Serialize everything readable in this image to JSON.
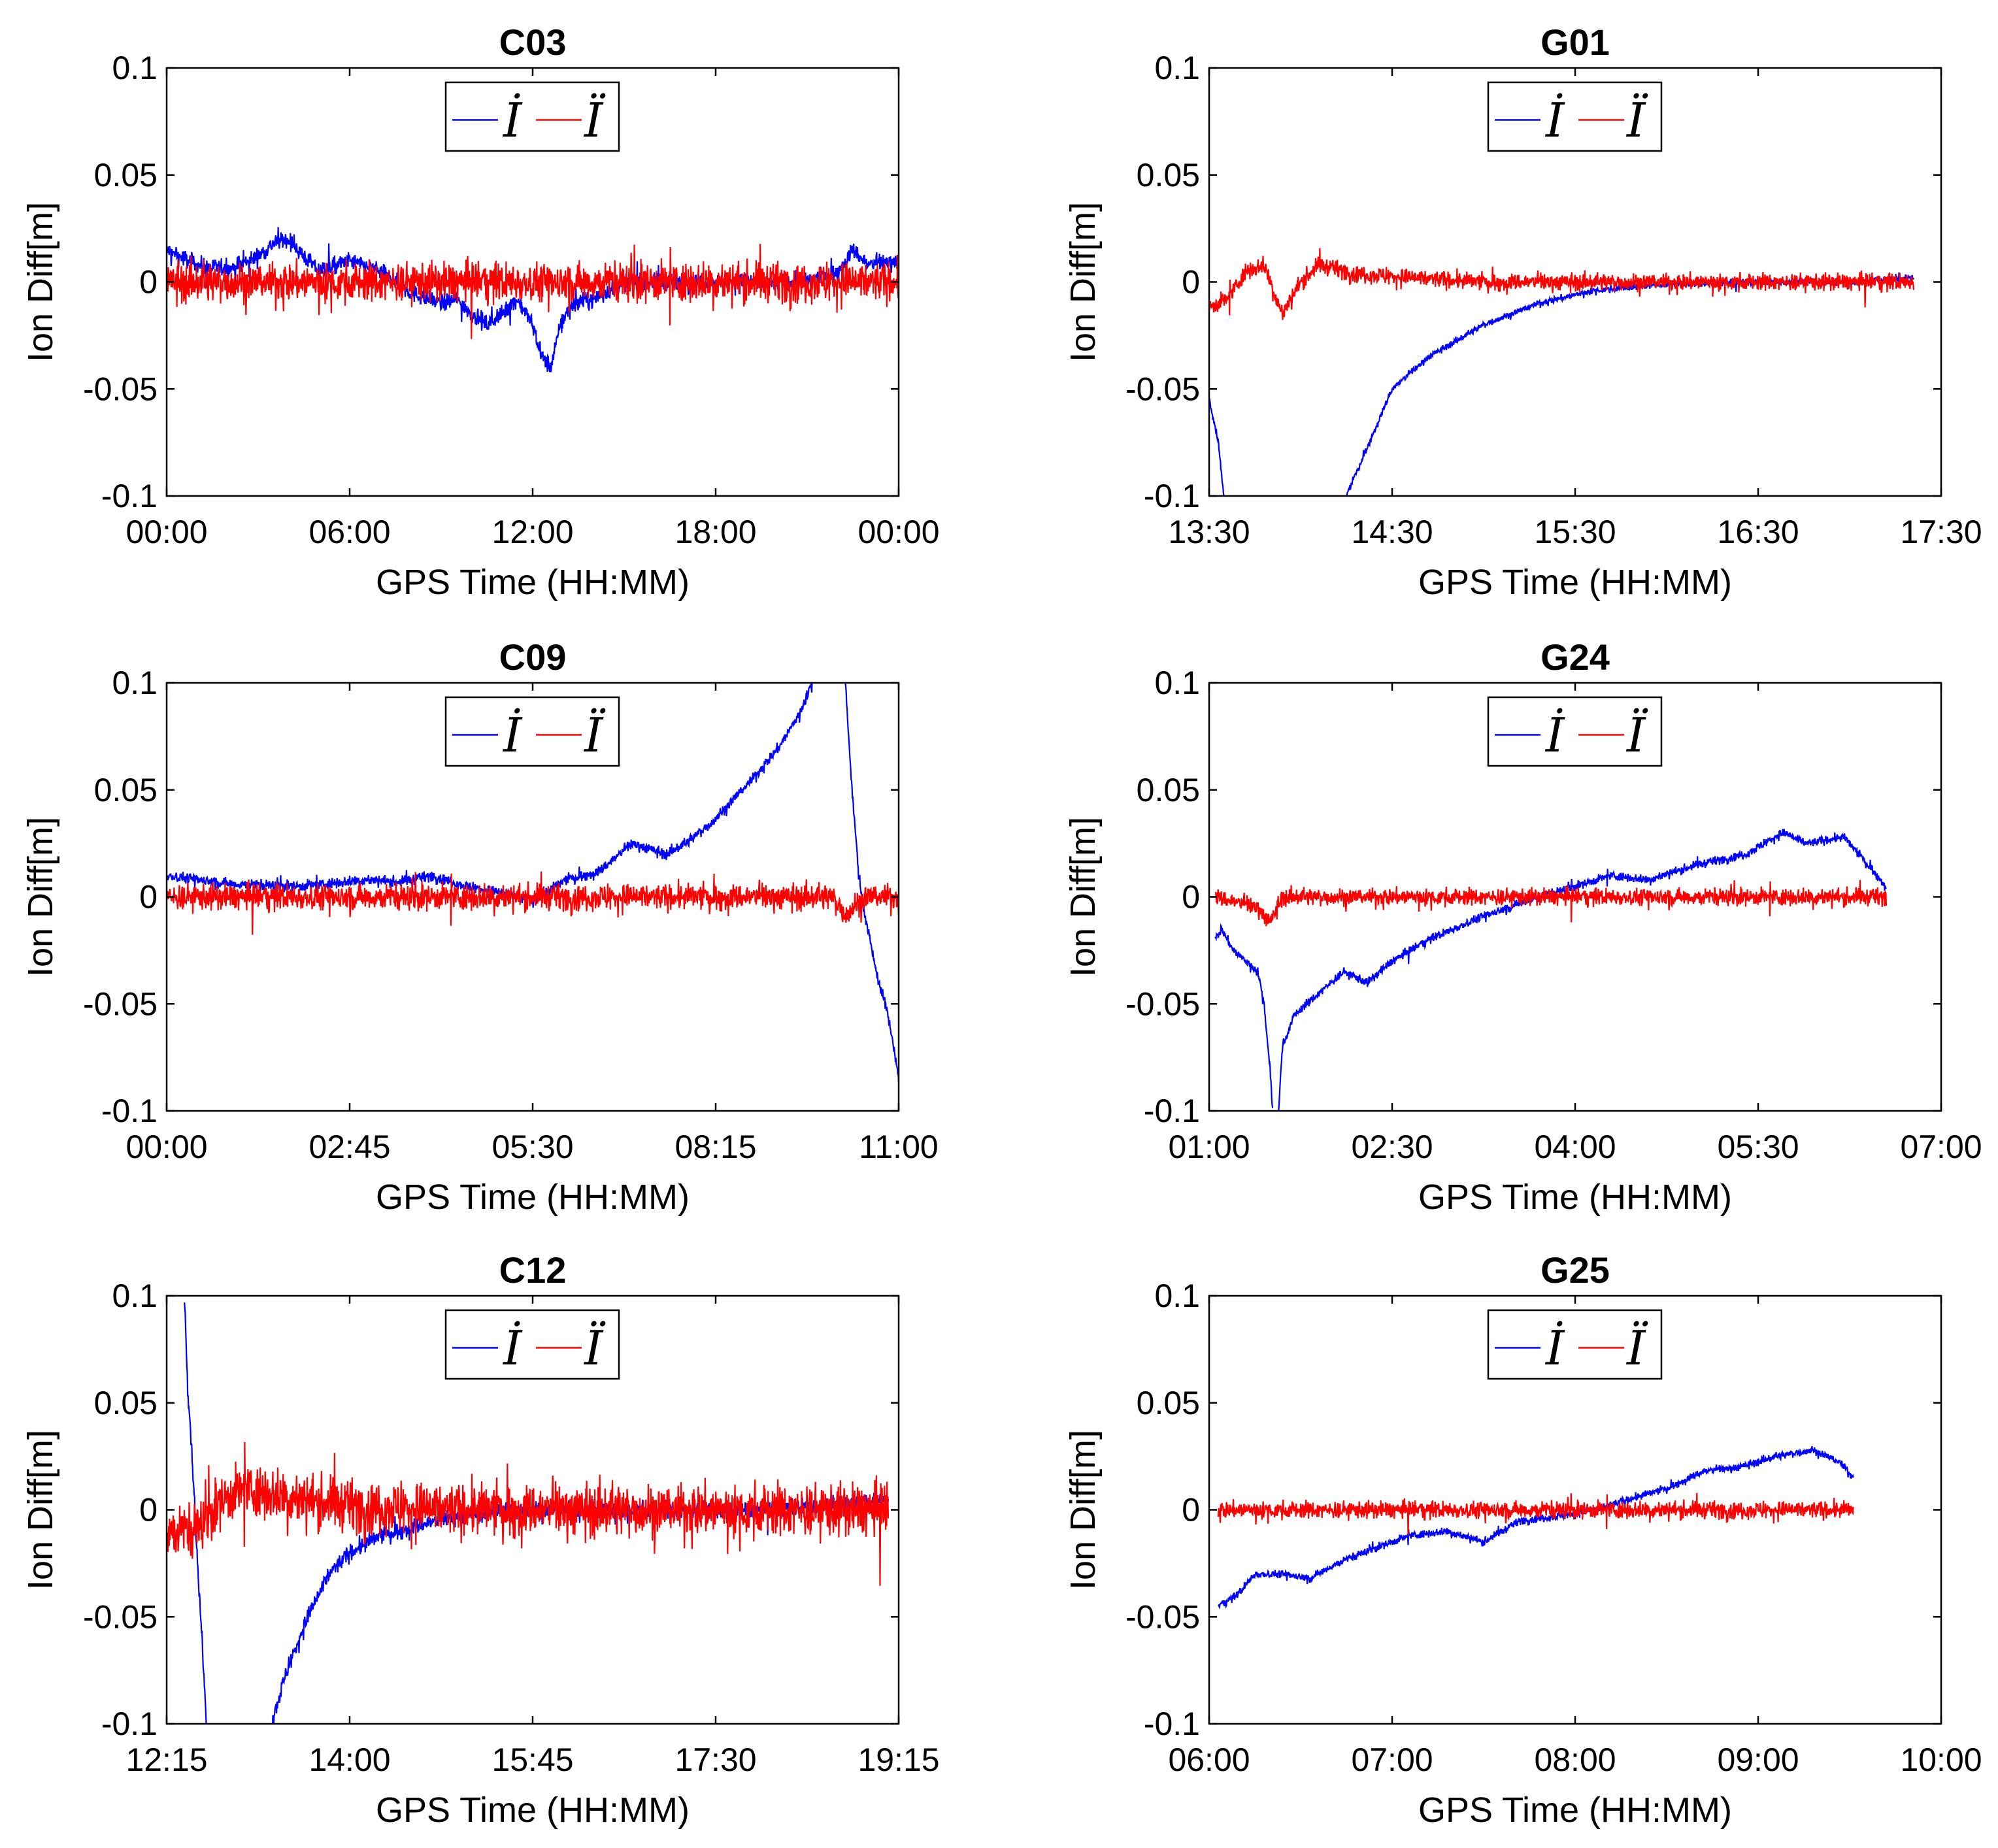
{
  "figure": {
    "description_colors": {
      "series_dot": "#0000ff",
      "series_ddot": "#ff0000",
      "axes": "#000000"
    }
  },
  "chart_data": [
    {
      "type": "line",
      "title": "C03",
      "xlabel": "GPS Time (HH:MM)",
      "ylabel": "Ion Diff[m]",
      "xlim": [
        0,
        24
      ],
      "ylim": [
        -0.1,
        0.1
      ],
      "xticks": [
        0,
        6,
        12,
        18,
        24
      ],
      "xtick_labels": [
        "00:00",
        "06:00",
        "12:00",
        "18:00",
        "00:00"
      ],
      "yticks": [
        -0.1,
        -0.05,
        0,
        0.05,
        0.1
      ],
      "ytick_labels": [
        "-0.1",
        "-0.05",
        "0",
        "0.05",
        "0.1"
      ],
      "legend": [
        "İ",
        "Ï"
      ],
      "series": [
        {
          "name": "İ",
          "color": "#0000ff",
          "noise": 0.004,
          "points": [
            [
              0,
              0.015
            ],
            [
              1,
              0.008
            ],
            [
              2,
              0.006
            ],
            [
              3,
              0.012
            ],
            [
              3.5,
              0.018
            ],
            [
              4,
              0.02
            ],
            [
              4.5,
              0.012
            ],
            [
              5,
              0.005
            ],
            [
              6,
              0.01
            ],
            [
              7,
              0.005
            ],
            [
              7.5,
              0
            ],
            [
              8,
              -0.005
            ],
            [
              9,
              -0.01
            ],
            [
              9.5,
              -0.008
            ],
            [
              10,
              -0.015
            ],
            [
              10.5,
              -0.02
            ],
            [
              11,
              -0.015
            ],
            [
              11.5,
              -0.008
            ],
            [
              12,
              -0.02
            ],
            [
              12.3,
              -0.035
            ],
            [
              12.6,
              -0.04
            ],
            [
              12.9,
              -0.02
            ],
            [
              13.3,
              -0.01
            ],
            [
              14,
              -0.008
            ],
            [
              15,
              0
            ],
            [
              16,
              0
            ],
            [
              17,
              0
            ],
            [
              18,
              0
            ],
            [
              19,
              0
            ],
            [
              20,
              0
            ],
            [
              21,
              0
            ],
            [
              22,
              0.005
            ],
            [
              22.5,
              0.015
            ],
            [
              23,
              0.008
            ],
            [
              24,
              0.01
            ]
          ]
        },
        {
          "name": "Ï",
          "color": "#ff0000",
          "noise": 0.009,
          "points": [
            [
              0,
              0
            ],
            [
              24,
              0
            ]
          ]
        }
      ]
    },
    {
      "type": "line",
      "title": "G01",
      "xlabel": "GPS Time (HH:MM)",
      "ylabel": "Ion Diff[m]",
      "xlim": [
        13.5,
        17.5
      ],
      "ylim": [
        -0.1,
        0.1
      ],
      "xticks": [
        13.5,
        14.5,
        15.5,
        16.5,
        17.5
      ],
      "xtick_labels": [
        "13:30",
        "14:30",
        "15:30",
        "16:30",
        "17:30"
      ],
      "yticks": [
        -0.1,
        -0.05,
        0,
        0.05,
        0.1
      ],
      "ytick_labels": [
        "-0.1",
        "-0.05",
        "0",
        "0.05",
        "0.1"
      ],
      "legend": [
        "İ",
        "Ï"
      ],
      "series": [
        {
          "name": "İ",
          "color": "#0000ff",
          "noise": 0.0015,
          "segments": [
            [
              [
                13.5,
                -0.055
              ],
              [
                13.55,
                -0.075
              ],
              [
                13.58,
                -0.1
              ]
            ],
            [
              [
                14.25,
                -0.1
              ],
              [
                14.3,
                -0.09
              ],
              [
                14.4,
                -0.07
              ],
              [
                14.5,
                -0.05
              ],
              [
                14.7,
                -0.035
              ],
              [
                15.0,
                -0.02
              ],
              [
                15.3,
                -0.01
              ],
              [
                15.6,
                -0.004
              ],
              [
                16.0,
                -0.001
              ],
              [
                16.5,
                0
              ],
              [
                17.0,
                0
              ],
              [
                17.35,
                0.002
              ]
            ]
          ]
        },
        {
          "name": "Ï",
          "color": "#ff0000",
          "noise": 0.004,
          "points": [
            [
              13.5,
              -0.012
            ],
            [
              13.6,
              -0.008
            ],
            [
              13.7,
              0.005
            ],
            [
              13.8,
              0.008
            ],
            [
              13.9,
              -0.015
            ],
            [
              14.0,
              0
            ],
            [
              14.1,
              0.008
            ],
            [
              14.3,
              0.004
            ],
            [
              14.6,
              0.002
            ],
            [
              15,
              0
            ],
            [
              16,
              0
            ],
            [
              17.35,
              0
            ]
          ]
        }
      ]
    },
    {
      "type": "line",
      "title": "C09",
      "xlabel": "GPS Time (HH:MM)",
      "ylabel": "Ion Diff[m]",
      "xlim": [
        0,
        11
      ],
      "ylim": [
        -0.1,
        0.1
      ],
      "xticks": [
        0,
        2.75,
        5.5,
        8.25,
        11
      ],
      "xtick_labels": [
        "00:00",
        "02:45",
        "05:30",
        "08:15",
        "11:00"
      ],
      "yticks": [
        -0.1,
        -0.05,
        0,
        0.05,
        0.1
      ],
      "ytick_labels": [
        "-0.1",
        "-0.05",
        "0",
        "0.05",
        "0.1"
      ],
      "legend": [
        "İ",
        "Ï"
      ],
      "series": [
        {
          "name": "İ",
          "color": "#0000ff",
          "noise": 0.0025,
          "segments": [
            [
              [
                0,
                0.01
              ],
              [
                1,
                0.006
              ],
              [
                2,
                0.005
              ],
              [
                3,
                0.008
              ],
              [
                3.5,
                0.007
              ],
              [
                4,
                0.01
              ],
              [
                4.5,
                0.005
              ],
              [
                5,
                0.002
              ],
              [
                5.5,
                -0.002
              ],
              [
                6,
                0.008
              ],
              [
                6.5,
                0.012
              ],
              [
                7,
                0.025
              ],
              [
                7.5,
                0.02
              ],
              [
                7.8,
                0.025
              ],
              [
                8.2,
                0.035
              ],
              [
                8.5,
                0.045
              ],
              [
                8.8,
                0.055
              ],
              [
                9.2,
                0.07
              ],
              [
                9.5,
                0.085
              ],
              [
                9.7,
                0.1
              ]
            ],
            [
              [
                10.2,
                0.1
              ],
              [
                10.3,
                0.05
              ],
              [
                10.4,
                0.01
              ],
              [
                10.5,
                -0.01
              ],
              [
                10.6,
                -0.025
              ],
              [
                10.7,
                -0.04
              ],
              [
                10.8,
                -0.05
              ],
              [
                10.9,
                -0.065
              ],
              [
                11,
                -0.085
              ]
            ]
          ]
        },
        {
          "name": "Ï",
          "color": "#ff0000",
          "noise": 0.006,
          "points": [
            [
              0,
              0
            ],
            [
              10,
              0
            ],
            [
              10.2,
              -0.008
            ],
            [
              10.5,
              0
            ],
            [
              11,
              0
            ]
          ]
        }
      ]
    },
    {
      "type": "line",
      "title": "G24",
      "xlabel": "GPS Time (HH:MM)",
      "ylabel": "Ion Diff[m]",
      "xlim": [
        1,
        7
      ],
      "ylim": [
        -0.1,
        0.1
      ],
      "xticks": [
        1,
        2.5,
        4,
        5.5,
        7
      ],
      "xtick_labels": [
        "01:00",
        "02:30",
        "04:00",
        "05:30",
        "07:00"
      ],
      "yticks": [
        -0.1,
        -0.05,
        0,
        0.05,
        0.1
      ],
      "ytick_labels": [
        "-0.1",
        "-0.05",
        "0",
        "0.05",
        "0.1"
      ],
      "legend": [
        "İ",
        "Ï"
      ],
      "series": [
        {
          "name": "İ",
          "color": "#0000ff",
          "noise": 0.002,
          "segments": [
            [
              [
                1.05,
                -0.02
              ],
              [
                1.1,
                -0.015
              ],
              [
                1.2,
                -0.025
              ],
              [
                1.3,
                -0.03
              ],
              [
                1.4,
                -0.035
              ],
              [
                1.45,
                -0.05
              ],
              [
                1.5,
                -0.08
              ],
              [
                1.52,
                -0.1
              ]
            ],
            [
              [
                1.57,
                -0.1
              ],
              [
                1.6,
                -0.07
              ],
              [
                1.7,
                -0.055
              ],
              [
                1.8,
                -0.05
              ],
              [
                1.9,
                -0.045
              ],
              [
                2.1,
                -0.035
              ],
              [
                2.3,
                -0.04
              ],
              [
                2.5,
                -0.03
              ],
              [
                2.8,
                -0.02
              ],
              [
                3.2,
                -0.01
              ],
              [
                3.6,
                -0.002
              ],
              [
                4,
                0.005
              ],
              [
                4.3,
                0.01
              ],
              [
                4.6,
                0.008
              ],
              [
                5,
                0.015
              ],
              [
                5.4,
                0.02
              ],
              [
                5.7,
                0.03
              ],
              [
                5.9,
                0.025
              ],
              [
                6.2,
                0.028
              ],
              [
                6.4,
                0.015
              ],
              [
                6.55,
                0.005
              ]
            ]
          ]
        },
        {
          "name": "Ï",
          "color": "#ff0000",
          "noise": 0.004,
          "points": [
            [
              1.05,
              0
            ],
            [
              1.4,
              -0.005
            ],
            [
              1.5,
              -0.012
            ],
            [
              1.6,
              0
            ],
            [
              2,
              0
            ],
            [
              6.55,
              0
            ]
          ]
        }
      ]
    },
    {
      "type": "line",
      "title": "C12",
      "xlabel": "GPS Time (HH:MM)",
      "ylabel": "Ion Diff[m]",
      "xlim": [
        12.25,
        19.25
      ],
      "ylim": [
        -0.1,
        0.1
      ],
      "xticks": [
        12.25,
        14,
        15.75,
        17.5,
        19.25
      ],
      "xtick_labels": [
        "12:15",
        "14:00",
        "15:45",
        "17:30",
        "19:15"
      ],
      "yticks": [
        -0.1,
        -0.05,
        0,
        0.05,
        0.1
      ],
      "ytick_labels": [
        "-0.1",
        "-0.05",
        "0",
        "0.05",
        "0.1"
      ],
      "legend": [
        "İ",
        "Ï"
      ],
      "series": [
        {
          "name": "İ",
          "color": "#0000ff",
          "noise": 0.004,
          "segments": [
            [
              [
                12.42,
                0.1
              ],
              [
                12.45,
                0.06
              ],
              [
                12.5,
                0.02
              ],
              [
                12.55,
                -0.03
              ],
              [
                12.6,
                -0.07
              ],
              [
                12.63,
                -0.1
              ]
            ],
            [
              [
                13.25,
                -0.1
              ],
              [
                13.4,
                -0.075
              ],
              [
                13.6,
                -0.05
              ],
              [
                13.8,
                -0.03
              ],
              [
                14,
                -0.02
              ],
              [
                14.3,
                -0.012
              ],
              [
                14.6,
                -0.008
              ],
              [
                15,
                -0.003
              ],
              [
                15.5,
                0
              ],
              [
                16,
                0
              ],
              [
                17,
                0
              ],
              [
                18,
                0
              ],
              [
                19.15,
                0.005
              ]
            ]
          ]
        },
        {
          "name": "Ï",
          "color": "#ff0000",
          "noise": 0.012,
          "points": [
            [
              12.25,
              -0.01
            ],
            [
              12.5,
              -0.01
            ],
            [
              12.8,
              0.005
            ],
            [
              13.0,
              0.01
            ],
            [
              13.5,
              0.005
            ],
            [
              14,
              0.002
            ],
            [
              15,
              0
            ],
            [
              19.15,
              0
            ]
          ]
        }
      ]
    },
    {
      "type": "line",
      "title": "G25",
      "xlabel": "GPS Time (HH:MM)",
      "ylabel": "Ion Diff[m]",
      "xlim": [
        6,
        10
      ],
      "ylim": [
        -0.1,
        0.1
      ],
      "xticks": [
        6,
        7,
        8,
        9,
        10
      ],
      "xtick_labels": [
        "06:00",
        "07:00",
        "08:00",
        "09:00",
        "10:00"
      ],
      "yticks": [
        -0.1,
        -0.05,
        0,
        0.05,
        0.1
      ],
      "ytick_labels": [
        "-0.1",
        "-0.05",
        "0",
        "0.05",
        "0.1"
      ],
      "legend": [
        "İ",
        "Ï"
      ],
      "series": [
        {
          "name": "İ",
          "color": "#0000ff",
          "noise": 0.0018,
          "points": [
            [
              6.05,
              -0.045
            ],
            [
              6.15,
              -0.04
            ],
            [
              6.25,
              -0.03
            ],
            [
              6.4,
              -0.03
            ],
            [
              6.55,
              -0.032
            ],
            [
              6.7,
              -0.025
            ],
            [
              6.9,
              -0.018
            ],
            [
              7.1,
              -0.012
            ],
            [
              7.3,
              -0.01
            ],
            [
              7.5,
              -0.015
            ],
            [
              7.7,
              -0.005
            ],
            [
              7.9,
              -0.003
            ],
            [
              8.1,
              0
            ],
            [
              8.3,
              0.005
            ],
            [
              8.5,
              0.01
            ],
            [
              8.7,
              0.018
            ],
            [
              8.9,
              0.02
            ],
            [
              9.1,
              0.025
            ],
            [
              9.3,
              0.028
            ],
            [
              9.45,
              0.022
            ],
            [
              9.52,
              0.015
            ]
          ]
        },
        {
          "name": "Ï",
          "color": "#ff0000",
          "noise": 0.004,
          "points": [
            [
              6.05,
              0
            ],
            [
              9.52,
              0
            ]
          ]
        }
      ]
    }
  ]
}
